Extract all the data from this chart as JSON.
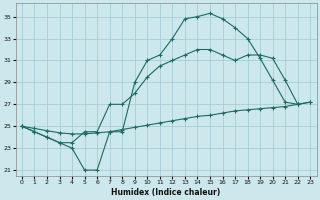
{
  "xlabel": "Humidex (Indice chaleur)",
  "background_color": "#cce8ec",
  "grid_color": "#a0c8d0",
  "line_color": "#1a6b60",
  "xlim": [
    -0.5,
    23.5
  ],
  "ylim": [
    20.5,
    36.2
  ],
  "xticks": [
    0,
    1,
    2,
    3,
    4,
    5,
    6,
    7,
    8,
    9,
    10,
    11,
    12,
    13,
    14,
    15,
    16,
    17,
    18,
    19,
    20,
    21,
    22,
    23
  ],
  "yticks": [
    21,
    23,
    25,
    27,
    29,
    31,
    33,
    35
  ],
  "curve1_x": [
    0,
    1,
    2,
    3,
    4,
    5,
    6,
    7,
    8,
    9,
    10,
    11,
    12,
    13,
    14,
    15,
    16,
    17,
    18,
    19,
    20,
    21,
    22
  ],
  "curve1_y": [
    25.0,
    24.5,
    24.0,
    23.5,
    23.0,
    21.0,
    21.0,
    24.5,
    24.5,
    29.0,
    31.0,
    31.5,
    33.0,
    34.8,
    35.0,
    35.3,
    34.8,
    34.0,
    33.0,
    31.2,
    29.2,
    27.2,
    27.0
  ],
  "curve2_x": [
    0,
    1,
    2,
    3,
    4,
    5,
    6,
    7,
    8,
    9,
    10,
    11,
    12,
    13,
    14,
    15,
    16,
    17,
    18,
    19,
    20,
    21,
    22,
    23
  ],
  "curve2_y": [
    25.0,
    24.5,
    24.0,
    23.5,
    23.5,
    24.5,
    24.5,
    27.0,
    27.0,
    28.0,
    29.5,
    30.5,
    31.0,
    31.5,
    32.0,
    32.0,
    31.5,
    31.0,
    31.5,
    31.5,
    31.2,
    29.2,
    27.0,
    27.2
  ],
  "curve3_x": [
    0,
    1,
    2,
    3,
    4,
    5,
    6,
    7,
    8,
    9,
    10,
    11,
    12,
    13,
    14,
    15,
    16,
    17,
    18,
    19,
    20,
    21,
    22,
    23
  ],
  "curve3_y": [
    25.0,
    24.8,
    24.6,
    24.4,
    24.3,
    24.3,
    24.4,
    24.5,
    24.7,
    24.9,
    25.1,
    25.3,
    25.5,
    25.7,
    25.9,
    26.0,
    26.2,
    26.4,
    26.5,
    26.6,
    26.7,
    26.8,
    27.0,
    27.2
  ]
}
